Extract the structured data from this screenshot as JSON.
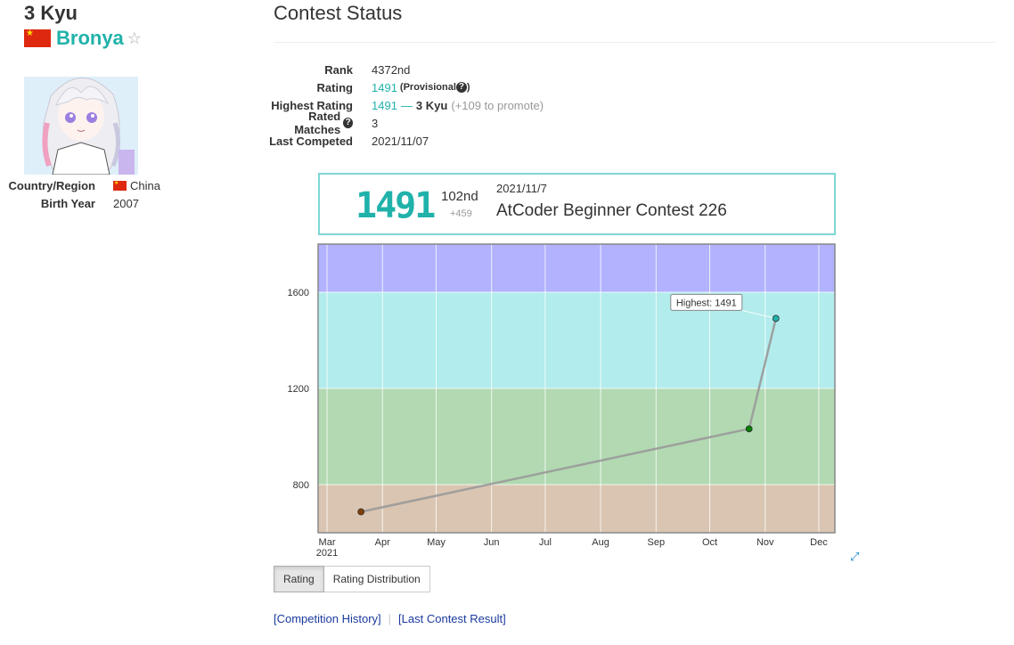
{
  "profile": {
    "rank": "3 Kyu",
    "username": "Bronya",
    "favorite_icon": "star-outline-icon",
    "flag_icon": "china-flag-icon",
    "info": [
      {
        "key": "Country/Region",
        "value": "China",
        "flag": true
      },
      {
        "key": "Birth Year",
        "value": "2007",
        "flag": false
      }
    ]
  },
  "contest_status": {
    "title": "Contest Status",
    "rank_label": "Rank",
    "rank_value": "4372nd",
    "rating_label": "Rating",
    "rating_value": "1491",
    "provisional_text": "(Provisional",
    "provisional_close": ")",
    "highest_label": "Highest Rating",
    "highest_value": "1491",
    "highest_dash": "—",
    "highest_kyu": "3 Kyu",
    "highest_promote": "(+109 to promote)",
    "matches_label": "Rated Matches",
    "matches_value": "3",
    "last_label": "Last Competed",
    "last_value": "2021/11/07"
  },
  "card": {
    "rating": "1491",
    "place": "102nd",
    "diff": "+459",
    "date": "2021/11/7",
    "contest": "AtCoder Beginner Contest 226"
  },
  "chart_data": {
    "type": "line",
    "x": [
      "2021-03-20",
      "2021-10-23",
      "2021-11-07"
    ],
    "y": [
      687,
      1032,
      1491
    ],
    "ylim": [
      600,
      1800
    ],
    "yticks": [
      "800",
      "1200",
      "1600"
    ],
    "xticks": [
      "Mar",
      "Apr",
      "May",
      "Jun",
      "Jul",
      "Aug",
      "Sep",
      "Oct",
      "Nov",
      "Dec"
    ],
    "xtick_year": "2021",
    "bands": [
      {
        "from": 600,
        "to": 800,
        "color": "#d9c5b2"
      },
      {
        "from": 800,
        "to": 1200,
        "color": "#b2d9b2"
      },
      {
        "from": 1200,
        "to": 1600,
        "color": "#b2ecec"
      },
      {
        "from": 1600,
        "to": 1800,
        "color": "#b2b2ff"
      }
    ],
    "point_colors": [
      "#804000",
      "#008000",
      "#20b2aa"
    ],
    "tooltip": "Highest: 1491",
    "grid": true
  },
  "buttons": {
    "rating": "Rating",
    "distribution": "Rating Distribution"
  },
  "links": {
    "history": "[Competition History]",
    "last_result": "[Last Contest Result]"
  }
}
